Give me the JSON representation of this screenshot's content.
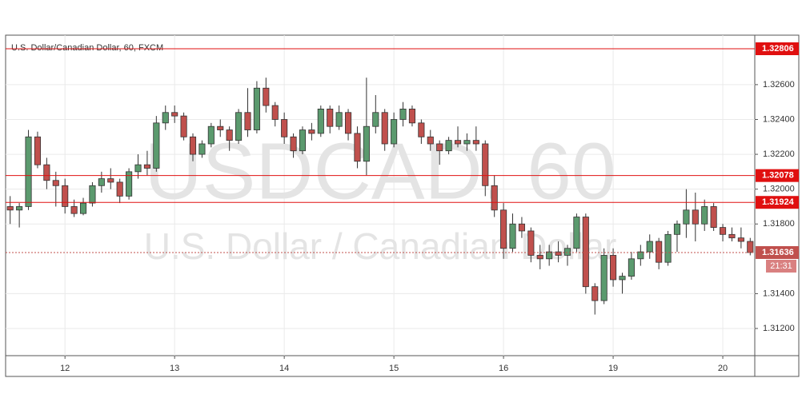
{
  "chart_data": {
    "type": "candlestick",
    "title": "U.S. Dollar/Canadian Dollar, 60, FXCM",
    "watermark": "USDCAD, 60",
    "watermark_subtitle": "U.S. Dollar / Canadian Dollar",
    "up_color": "#5b9a6e",
    "down_color": "#c0504d",
    "open": [
      1.319,
      1.3188,
      1.319,
      1.323,
      1.3214,
      1.3205,
      1.3202,
      1.319,
      1.3186,
      1.3192,
      1.3202,
      1.3206,
      1.3204,
      1.3196,
      1.321,
      1.3214,
      1.3212,
      1.3238,
      1.3244,
      1.3242,
      1.323,
      1.322,
      1.3226,
      1.3236,
      1.3234,
      1.3228,
      1.3244,
      1.3234,
      1.3258,
      1.3248,
      1.324,
      1.323,
      1.3222,
      1.3234,
      1.3232,
      1.3246,
      1.3236,
      1.3244,
      1.3232,
      1.3216,
      1.3236,
      1.3244,
      1.3226,
      1.324,
      1.3246,
      1.3238,
      1.323,
      1.3226,
      1.3222,
      1.3228,
      1.3226,
      1.3228,
      1.3226,
      1.3202,
      1.3188,
      1.3166,
      1.318,
      1.3176,
      1.3162,
      1.316,
      1.3164,
      1.3162,
      1.3166,
      1.3184,
      1.3144,
      1.3136,
      1.3162,
      1.3148,
      1.315,
      1.316,
      1.3164,
      1.317,
      1.3158,
      1.3174,
      1.318,
      1.3188,
      1.318,
      1.319,
      1.3178,
      1.3174,
      1.3172,
      1.317
    ],
    "high": [
      1.3196,
      1.3192,
      1.3234,
      1.3233,
      1.3218,
      1.321,
      1.3206,
      1.3194,
      1.3195,
      1.3204,
      1.321,
      1.3212,
      1.3206,
      1.3212,
      1.322,
      1.3222,
      1.3242,
      1.3248,
      1.3248,
      1.3244,
      1.3232,
      1.3228,
      1.3238,
      1.324,
      1.3236,
      1.3246,
      1.3258,
      1.3262,
      1.3264,
      1.325,
      1.3244,
      1.3232,
      1.3236,
      1.3238,
      1.3248,
      1.3248,
      1.3248,
      1.3246,
      1.3236,
      1.3264,
      1.3254,
      1.3246,
      1.3244,
      1.325,
      1.3248,
      1.324,
      1.3234,
      1.3228,
      1.323,
      1.3236,
      1.3232,
      1.3236,
      1.3228,
      1.3208,
      1.3192,
      1.3186,
      1.3184,
      1.3178,
      1.3168,
      1.3168,
      1.317,
      1.3168,
      1.3186,
      1.3186,
      1.3146,
      1.3166,
      1.3166,
      1.3152,
      1.3164,
      1.3168,
      1.3174,
      1.3172,
      1.3176,
      1.3182,
      1.32,
      1.3198,
      1.3194,
      1.3192,
      1.318,
      1.3178,
      1.3178,
      1.3172
    ],
    "low": [
      1.318,
      1.3178,
      1.3188,
      1.3212,
      1.32,
      1.319,
      1.3186,
      1.3184,
      1.3185,
      1.319,
      1.3198,
      1.32,
      1.3192,
      1.3194,
      1.3206,
      1.3208,
      1.321,
      1.3234,
      1.3238,
      1.3228,
      1.3216,
      1.3218,
      1.3224,
      1.323,
      1.3222,
      1.3226,
      1.323,
      1.3232,
      1.3244,
      1.3236,
      1.3226,
      1.3218,
      1.322,
      1.3228,
      1.323,
      1.3232,
      1.3234,
      1.3228,
      1.3212,
      1.3208,
      1.3232,
      1.3222,
      1.3224,
      1.3236,
      1.3236,
      1.3226,
      1.3222,
      1.3214,
      1.322,
      1.3224,
      1.3222,
      1.3222,
      1.3196,
      1.3184,
      1.316,
      1.3164,
      1.3172,
      1.3158,
      1.3154,
      1.3156,
      1.3158,
      1.3156,
      1.3164,
      1.314,
      1.3128,
      1.3134,
      1.3144,
      1.314,
      1.3148,
      1.3156,
      1.316,
      1.3154,
      1.3156,
      1.3164,
      1.3172,
      1.317,
      1.3176,
      1.3176,
      1.317,
      1.317,
      1.3166,
      1.3162
    ],
    "close": [
      1.3188,
      1.319,
      1.323,
      1.3214,
      1.3205,
      1.3202,
      1.319,
      1.3186,
      1.3192,
      1.3202,
      1.3206,
      1.3204,
      1.3196,
      1.321,
      1.3214,
      1.3212,
      1.3238,
      1.3244,
      1.3242,
      1.323,
      1.322,
      1.3226,
      1.3236,
      1.3234,
      1.3228,
      1.3244,
      1.3234,
      1.3258,
      1.3248,
      1.324,
      1.323,
      1.3222,
      1.3234,
      1.3232,
      1.3246,
      1.3236,
      1.3244,
      1.3232,
      1.3216,
      1.3236,
      1.3244,
      1.3226,
      1.324,
      1.3246,
      1.3238,
      1.323,
      1.3226,
      1.3222,
      1.3228,
      1.3226,
      1.3228,
      1.3226,
      1.3202,
      1.3188,
      1.3166,
      1.318,
      1.3176,
      1.3162,
      1.316,
      1.3164,
      1.3162,
      1.3166,
      1.3184,
      1.3144,
      1.3136,
      1.3162,
      1.3148,
      1.315,
      1.316,
      1.3164,
      1.317,
      1.3158,
      1.3174,
      1.318,
      1.3188,
      1.318,
      1.319,
      1.3178,
      1.3174,
      1.3172,
      1.317,
      1.31636
    ],
    "xlim": [
      -0.5,
      81.5
    ],
    "xticks": [
      {
        "value": 6,
        "label": "12"
      },
      {
        "value": 18,
        "label": "13"
      },
      {
        "value": 30,
        "label": "14"
      },
      {
        "value": 42,
        "label": "15"
      },
      {
        "value": 54,
        "label": "16"
      },
      {
        "value": 66,
        "label": "19"
      },
      {
        "value": 78,
        "label": "20"
      }
    ],
    "ylim": [
      1.31044,
      1.32884
    ],
    "yticks": [
      {
        "value": 1.312,
        "label": "1.31200"
      },
      {
        "value": 1.314,
        "label": "1.31400"
      },
      {
        "value": 1.318,
        "label": "1.31800"
      },
      {
        "value": 1.32,
        "label": "1.32000"
      },
      {
        "value": 1.322,
        "label": "1.32200"
      },
      {
        "value": 1.324,
        "label": "1.32400"
      },
      {
        "value": 1.326,
        "label": "1.32600"
      }
    ],
    "levels": [
      1.32806,
      1.32078,
      1.31924
    ],
    "level_color": "#e01010",
    "last_price": 1.31636,
    "countdown": "21:31",
    "grid": true
  }
}
